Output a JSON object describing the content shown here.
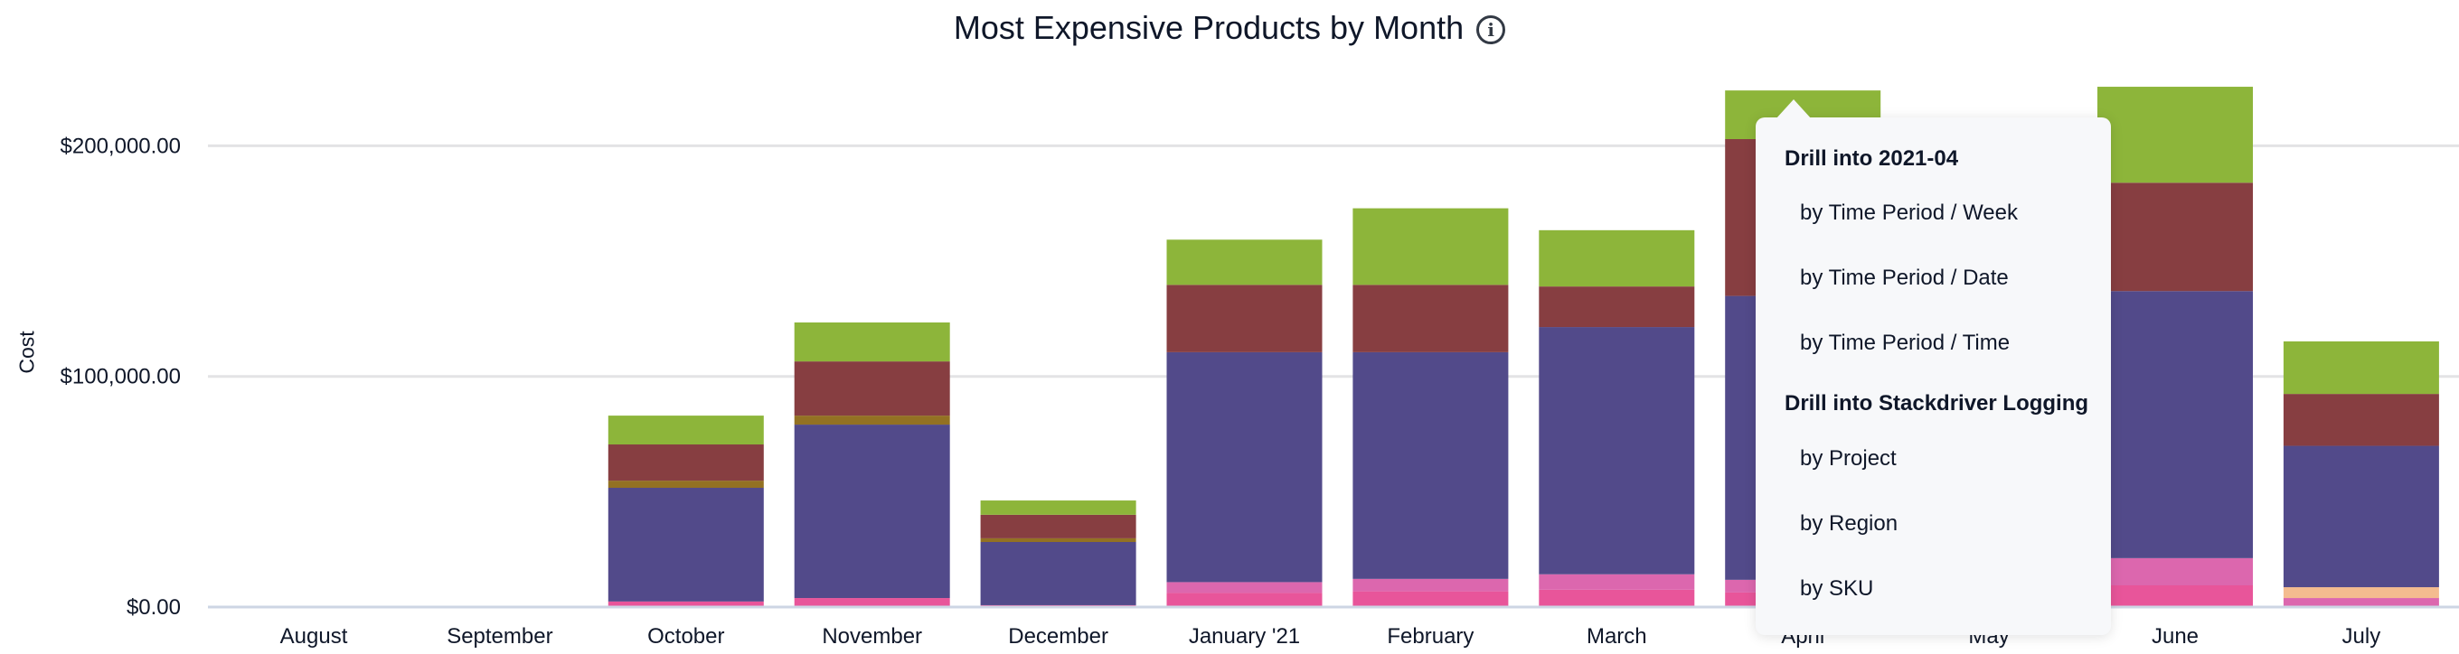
{
  "chart_data": {
    "type": "bar",
    "stacked": true,
    "title": "Most Expensive Products by Month",
    "title_icon": "info-icon",
    "xlabel": "",
    "ylabel": "Cost",
    "ylim": [
      0,
      230000
    ],
    "yticks": [
      0,
      100000,
      200000
    ],
    "ytick_labels": [
      "$0.00",
      "$100,000.00",
      "$200,000.00"
    ],
    "grid": true,
    "legend": "none",
    "categories": [
      "August",
      "September",
      "October",
      "November",
      "December",
      "January '21",
      "February",
      "March",
      "April",
      "May",
      "June",
      "July"
    ],
    "series": [
      {
        "color": "#e8559a",
        "values": [
          0,
          0,
          2400,
          3900,
          800,
          6100,
          6800,
          7500,
          6300,
          null,
          9400,
          0
        ]
      },
      {
        "color": "#dc67ae",
        "values": [
          0,
          0,
          0,
          0,
          0,
          4700,
          5400,
          6700,
          5500,
          null,
          11800,
          3900
        ]
      },
      {
        "color": "#f4bc8f",
        "values": [
          0,
          0,
          0,
          0,
          0,
          0,
          0,
          0,
          0,
          null,
          0,
          4700
        ]
      },
      {
        "color": "#524a8a",
        "values": [
          0,
          0,
          49300,
          75200,
          27400,
          99700,
          98300,
          107200,
          123100,
          null,
          115800,
          61300
        ]
      },
      {
        "color": "#937123",
        "values": [
          0,
          0,
          3100,
          3900,
          1600,
          0,
          0,
          0,
          0,
          null,
          0,
          0
        ]
      },
      {
        "color": "#873e41",
        "values": [
          0,
          0,
          15700,
          23500,
          10200,
          29200,
          29200,
          17600,
          68000,
          null,
          47000,
          22500
        ]
      },
      {
        "color": "#8db53a",
        "values": [
          0,
          0,
          12500,
          16900,
          6200,
          19600,
          33200,
          24400,
          21100,
          null,
          41600,
          22800
        ]
      }
    ]
  },
  "popup": {
    "sections": [
      {
        "header": "Drill into 2021-04",
        "items": [
          "by Time Period / Week",
          "by Time Period / Date",
          "by Time Period / Time"
        ]
      },
      {
        "header": "Drill into Stackdriver Logging",
        "items": [
          "by Project",
          "by Region",
          "by SKU"
        ]
      }
    ]
  }
}
